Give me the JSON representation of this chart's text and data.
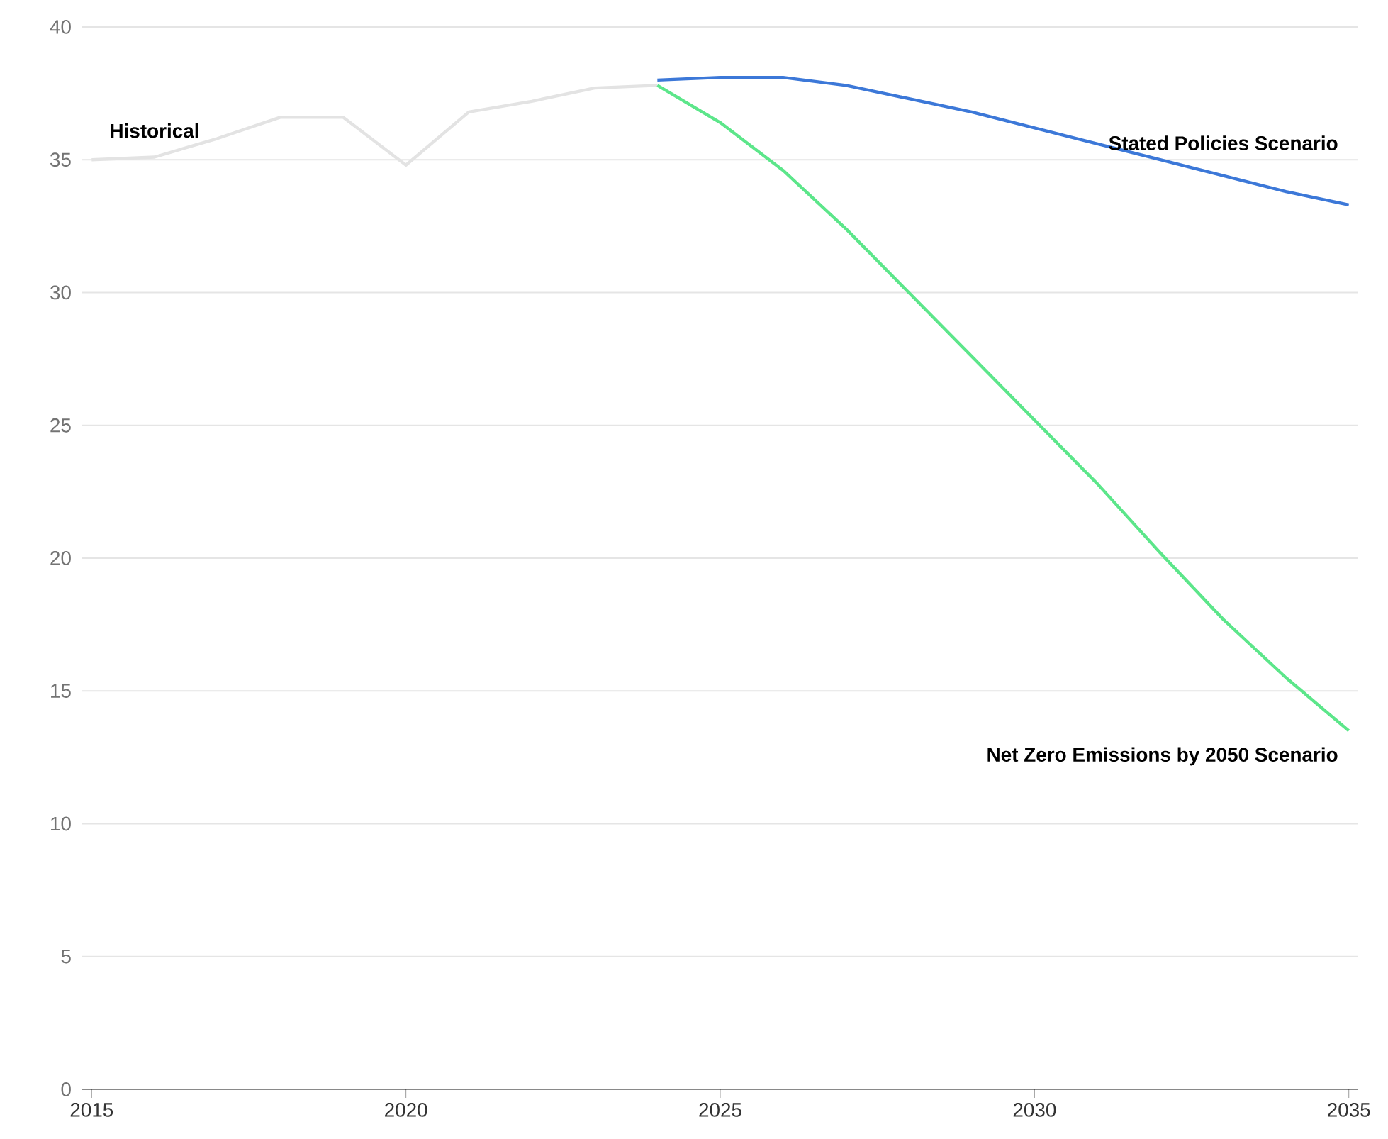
{
  "chart_data": {
    "type": "line",
    "xlim": [
      2014.85,
      2035.15
    ],
    "ylim": [
      0,
      40
    ],
    "xticks": [
      2015,
      2020,
      2025,
      2030,
      2035
    ],
    "yticks": [
      0,
      5,
      10,
      15,
      20,
      25,
      30,
      35,
      40
    ],
    "grid": "y",
    "legend": false,
    "marker": "none",
    "line_style": "solid",
    "series": [
      {
        "name": "Historical",
        "color": "#e3e3e3",
        "x": [
          2015,
          2016,
          2017,
          2018,
          2019,
          2020,
          2021,
          2022,
          2023,
          2024
        ],
        "values": [
          35.0,
          35.1,
          35.8,
          36.6,
          36.6,
          34.8,
          36.8,
          37.2,
          37.7,
          37.8
        ]
      },
      {
        "name": "Stated Policies Scenario",
        "color": "#3c78d8",
        "x": [
          2024,
          2025,
          2026,
          2027,
          2028,
          2029,
          2030,
          2031,
          2032,
          2033,
          2034,
          2035
        ],
        "values": [
          38.0,
          38.1,
          38.1,
          37.8,
          37.3,
          36.8,
          36.2,
          35.6,
          35.0,
          34.4,
          33.8,
          33.3
        ]
      },
      {
        "name": "Net Zero Emissions by 2050 Scenario",
        "color": "#5ce68a",
        "x": [
          2024,
          2025,
          2026,
          2027,
          2028,
          2029,
          2030,
          2031,
          2032,
          2033,
          2034,
          2035
        ],
        "values": [
          37.8,
          36.4,
          34.6,
          32.4,
          30.0,
          27.6,
          25.2,
          22.8,
          20.2,
          17.7,
          15.5,
          13.5
        ]
      }
    ]
  }
}
